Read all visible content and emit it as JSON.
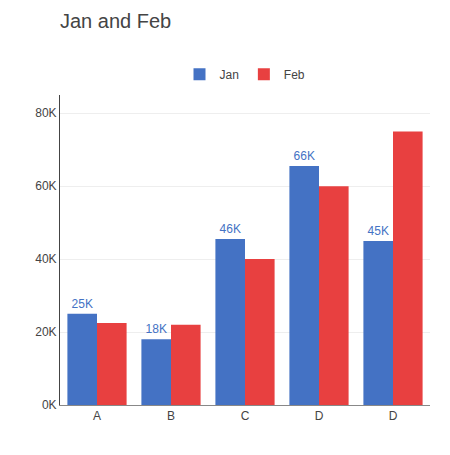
{
  "chart_data": {
    "type": "bar",
    "title": "Jan and Feb",
    "categories": [
      "A",
      "B",
      "C",
      "D",
      "D"
    ],
    "series": [
      {
        "name": "Jan",
        "color": "#4472C4",
        "values": [
          25000,
          18000,
          45500,
          65500,
          45000
        ],
        "data_labels": true,
        "value_labels": [
          "25K",
          "18K",
          "46K",
          "66K",
          "45K"
        ]
      },
      {
        "name": "Feb",
        "color": "#E84040",
        "values": [
          22500,
          22000,
          40000,
          60000,
          75000
        ]
      }
    ],
    "ylim": [
      0,
      85000
    ],
    "yticks": [
      {
        "value": 0,
        "label": "0K"
      },
      {
        "value": 20000,
        "label": "20K"
      },
      {
        "value": 40000,
        "label": "40K"
      },
      {
        "value": 60000,
        "label": "60K"
      },
      {
        "value": 80000,
        "label": "80K"
      }
    ],
    "grid": true,
    "legend": "top"
  }
}
